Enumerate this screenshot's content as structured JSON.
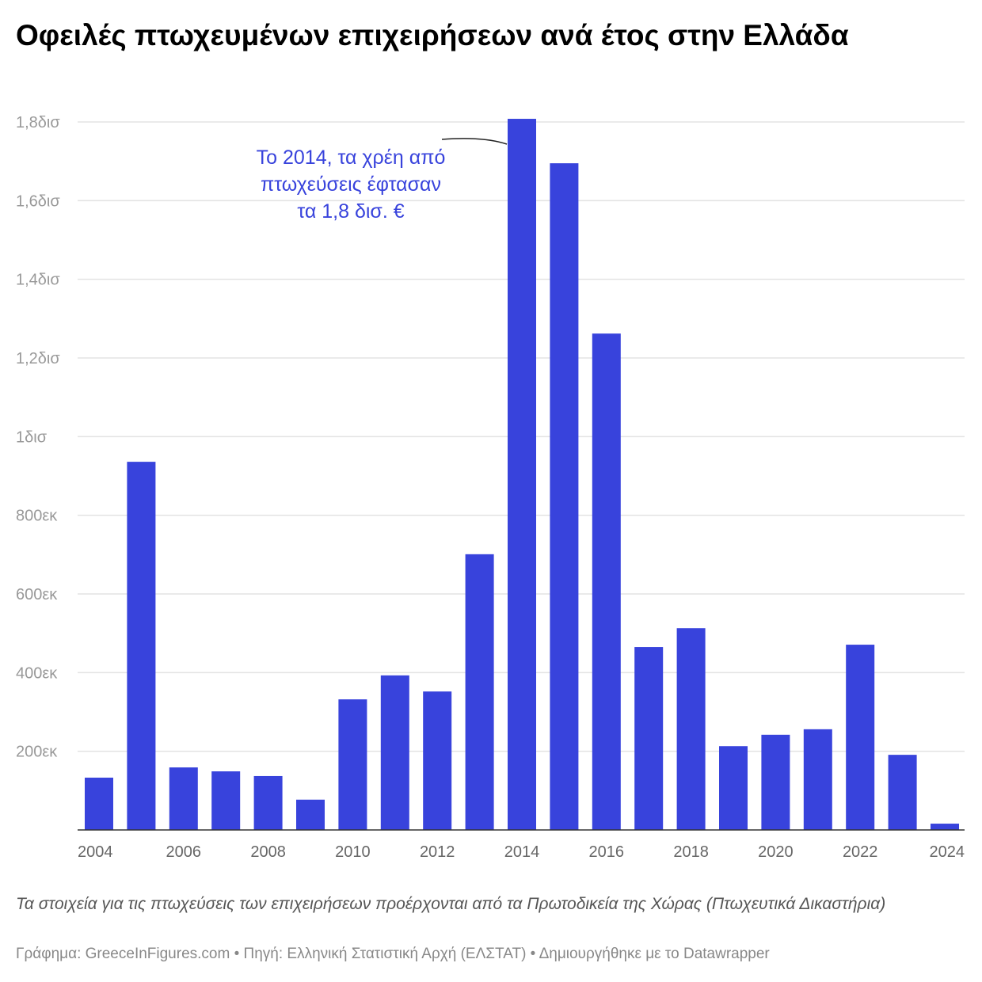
{
  "title": "Οφειλές πτωχευμένων επιχειρήσεων ανά έτος στην Ελλάδα",
  "note": "Τα στοιχεία για τις πτωχεύσεις των επιχειρήσεων προέρχονται από τα Πρωτοδικεία της Χώρας (Πτωχευτικά Δικαστήρια)",
  "footer": "Γράφημα: GreeceInFigures.com • Πηγή: Ελληνική Στατιστική Αρχή (ΕΛΣΤΑΤ)  • Δημιουργήθηκε με το Datawrapper",
  "chart_data": {
    "type": "bar",
    "title": "Οφειλές πτωχευμένων επιχειρήσεων ανά έτος στην Ελλάδα",
    "categories": [
      "2004",
      "2005",
      "2006",
      "2007",
      "2008",
      "2009",
      "2010",
      "2011",
      "2012",
      "2013",
      "2014",
      "2015",
      "2016",
      "2017",
      "2018",
      "2019",
      "2020",
      "2021",
      "2022",
      "2023",
      "2024"
    ],
    "values": [
      133000000,
      936000000,
      159000000,
      149000000,
      137000000,
      77000000,
      332000000,
      393000000,
      352000000,
      701000000,
      1808000000,
      1695000000,
      1262000000,
      465000000,
      513000000,
      213000000,
      242000000,
      256000000,
      471000000,
      191000000,
      16000000
    ],
    "ylim": [
      0,
      1800000000
    ],
    "yticks": [
      {
        "value": 200000000,
        "label": "200εκ"
      },
      {
        "value": 400000000,
        "label": "400εκ"
      },
      {
        "value": 600000000,
        "label": "600εκ"
      },
      {
        "value": 800000000,
        "label": "800εκ"
      },
      {
        "value": 1000000000,
        "label": "1δισ"
      },
      {
        "value": 1200000000,
        "label": "1,2δισ"
      },
      {
        "value": 1400000000,
        "label": "1,4δισ"
      },
      {
        "value": 1600000000,
        "label": "1,6δισ"
      },
      {
        "value": 1800000000,
        "label": "1,8δισ"
      }
    ],
    "xticks": [
      "2004",
      "2006",
      "2008",
      "2010",
      "2012",
      "2014",
      "2016",
      "2018",
      "2020",
      "2022",
      "2024"
    ],
    "grid": true,
    "bar_color": "#3843dc",
    "annotation": {
      "target": "2014",
      "lines": [
        "Το 2014, τα χρέη από",
        "πτωχεύσεις έφτασαν",
        "τα 1,8 δισ. €"
      ]
    }
  }
}
